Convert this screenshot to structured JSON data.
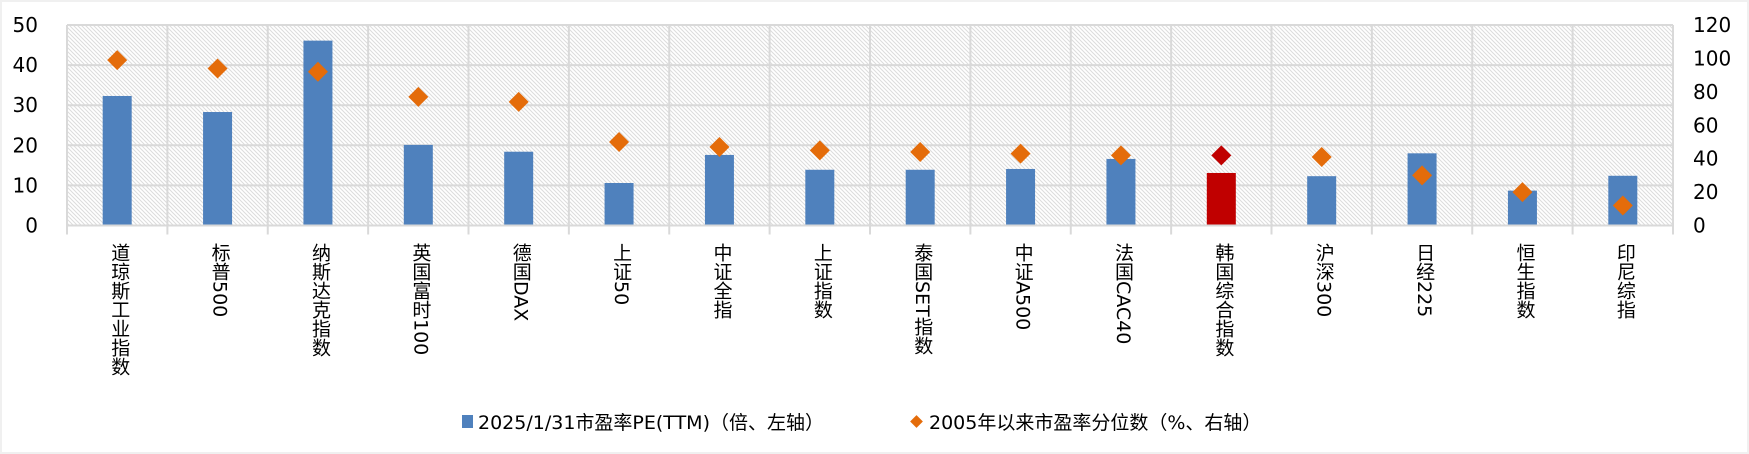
{
  "chart_data": {
    "type": "bar",
    "title": "",
    "categories": [
      "道琼斯工业指数",
      "标普500",
      "纳斯达克指数",
      "英国富时100",
      "德国DAX",
      "上证50",
      "中证全指",
      "上证指数",
      "泰国SET指数",
      "中证A500",
      "法国CAC40",
      "韩国综合指数",
      "沪深300",
      "日经225",
      "恒生指数",
      "印尼综指"
    ],
    "series": [
      {
        "name": "2025/1/31市盈率PE(TTM)（倍、左轴）",
        "type": "bar",
        "axis": "left",
        "color": "#4F81BD",
        "values": [
          32.3,
          28.3,
          46.1,
          20.1,
          18.4,
          10.6,
          17.6,
          13.9,
          13.9,
          14.1,
          16.6,
          13.1,
          12.3,
          18.0,
          8.7,
          12.4
        ]
      },
      {
        "name": "2005年以来市盈率分位数（%、右轴）",
        "type": "scatter",
        "marker": "diamond",
        "axis": "right",
        "color": "#E46C0A",
        "values": [
          99,
          94,
          92,
          77,
          74,
          50,
          47,
          45,
          44,
          43,
          42,
          42,
          41,
          30,
          20,
          12
        ]
      }
    ],
    "highlight": {
      "category_index": 11,
      "category": "韩国综合指数",
      "bar_color": "#C00000",
      "marker_color": "#C00000"
    },
    "left_axis": {
      "min": 0,
      "max": 50,
      "step": 10,
      "ticks": [
        "0",
        "10",
        "20",
        "30",
        "40",
        "50"
      ]
    },
    "right_axis": {
      "min": 0,
      "max": 120,
      "step": 20,
      "ticks": [
        "0",
        "20",
        "40",
        "60",
        "80",
        "100",
        "120"
      ]
    },
    "xlabel": "",
    "ylabel": "",
    "ylim": [
      0,
      50
    ],
    "y2lim": [
      0,
      120
    ],
    "grid": true,
    "plot_background": "diagonal-hatch",
    "legend_position": "bottom"
  },
  "legend": {
    "items": [
      {
        "label": "2025/1/31市盈率PE(TTM)（倍、左轴）",
        "marker": "square",
        "color": "#4F81BD"
      },
      {
        "label": "2005年以来市盈率分位数（%、右轴）",
        "marker": "diamond",
        "color": "#E46C0A"
      }
    ]
  },
  "colors": {
    "bar": "#4F81BD",
    "marker": "#E46C0A",
    "highlight": "#C00000",
    "grid": "#D9D9D9",
    "hatch": "#D9D9D9"
  }
}
